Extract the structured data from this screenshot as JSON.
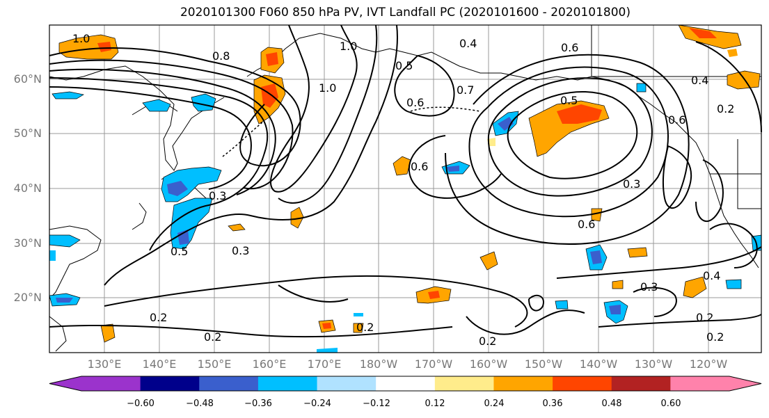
{
  "title": "2020101300 F060 850 hPa PV, IVT Landfall PC (2020101600 - 2020101800)",
  "lat_ticks": [
    "60°N",
    "50°N",
    "40°N",
    "30°N",
    "20°N"
  ],
  "lon_ticks": [
    "130°E",
    "140°E",
    "150°E",
    "160°E",
    "170°E",
    "180°W",
    "170°W",
    "160°W",
    "150°W",
    "140°W",
    "130°W",
    "120°W"
  ],
  "contour_labels": [
    "1.0",
    "0.8",
    "1.0",
    "0.5",
    "0.4",
    "0.6",
    "0.6",
    "0.7",
    "0.5",
    "0.6",
    "0.4",
    "0.2",
    "0.3",
    "0.5",
    "0.3",
    "0.2",
    "0.2",
    "0.2",
    "0.2",
    "0.6",
    "0.2",
    "0.2",
    "0.4",
    "0.3",
    "1.0",
    "0.6",
    "0.3"
  ],
  "colorbar": {
    "labels": [
      "−0.60",
      "−0.48",
      "−0.36",
      "−0.24",
      "−0.12",
      "0.12",
      "0.24",
      "0.36",
      "0.48",
      "0.60"
    ],
    "colors": [
      "#9b33cc",
      "#00008b",
      "#3a5fcd",
      "#00bfff",
      "#b0e2ff",
      "#ffffff",
      "#ffec8b",
      "#ffa500",
      "#ff4500",
      "#b22222",
      "#ff82ab"
    ]
  }
}
